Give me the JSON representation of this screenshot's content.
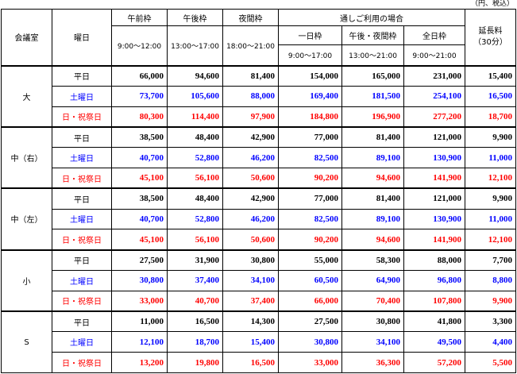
{
  "unit_note": "（円、税込）",
  "header": {
    "room": "会議室",
    "day": "曜日",
    "morning": "午前枠",
    "afternoon": "午後枠",
    "evening": "夜間枠",
    "combined": "通しご利用の場合",
    "oneday": "一日枠",
    "aft_eve": "午後・夜間枠",
    "fullday": "全日枠",
    "extension": "延長料\n（30分）",
    "t_morning": "9:00〜12:00",
    "t_afternoon": "13:00〜17:00",
    "t_evening": "18:00〜21:00",
    "t_oneday": "9:00〜17:00",
    "t_aft_eve": "13:00〜21:00",
    "t_fullday": "9:00〜21:00"
  },
  "colors": {
    "weekday": "#000000",
    "saturday": "#0000ff",
    "holiday": "#ff0000"
  },
  "rooms": [
    {
      "name": "大",
      "rows": [
        {
          "day": "平日",
          "kind": "weekday",
          "values": [
            "66,000",
            "94,600",
            "81,400",
            "154,000",
            "165,000",
            "231,000",
            "15,400"
          ]
        },
        {
          "day": "土曜日",
          "kind": "sat",
          "values": [
            "73,700",
            "105,600",
            "88,000",
            "169,400",
            "181,500",
            "254,100",
            "16,500"
          ]
        },
        {
          "day": "日・祝祭日",
          "kind": "hol",
          "values": [
            "80,300",
            "114,400",
            "97,900",
            "184,800",
            "196,900",
            "277,200",
            "18,700"
          ]
        }
      ]
    },
    {
      "name": "中（右）",
      "rows": [
        {
          "day": "平日",
          "kind": "weekday",
          "values": [
            "38,500",
            "48,400",
            "42,900",
            "77,000",
            "81,400",
            "121,000",
            "9,900"
          ]
        },
        {
          "day": "土曜日",
          "kind": "sat",
          "values": [
            "40,700",
            "52,800",
            "46,200",
            "82,500",
            "89,100",
            "130,900",
            "11,000"
          ]
        },
        {
          "day": "日・祝祭日",
          "kind": "hol",
          "values": [
            "45,100",
            "56,100",
            "50,600",
            "90,200",
            "94,600",
            "141,900",
            "12,100"
          ]
        }
      ]
    },
    {
      "name": "中（左）",
      "rows": [
        {
          "day": "平日",
          "kind": "weekday",
          "values": [
            "38,500",
            "48,400",
            "42,900",
            "77,000",
            "81,400",
            "121,000",
            "9,900"
          ]
        },
        {
          "day": "土曜日",
          "kind": "sat",
          "values": [
            "40,700",
            "52,800",
            "46,200",
            "82,500",
            "89,100",
            "130,900",
            "11,000"
          ]
        },
        {
          "day": "日・祝祭日",
          "kind": "hol",
          "values": [
            "45,100",
            "56,100",
            "50,600",
            "90,200",
            "94,600",
            "141,900",
            "12,100"
          ]
        }
      ]
    },
    {
      "name": "小",
      "rows": [
        {
          "day": "平日",
          "kind": "weekday",
          "values": [
            "27,500",
            "31,900",
            "30,800",
            "55,000",
            "58,300",
            "88,000",
            "7,700"
          ]
        },
        {
          "day": "土曜日",
          "kind": "sat",
          "values": [
            "30,800",
            "37,400",
            "34,100",
            "60,500",
            "64,900",
            "96,800",
            "8,800"
          ]
        },
        {
          "day": "日・祝祭日",
          "kind": "hol",
          "values": [
            "33,000",
            "40,700",
            "37,400",
            "66,000",
            "70,400",
            "107,800",
            "9,900"
          ]
        }
      ]
    },
    {
      "name": "S",
      "rows": [
        {
          "day": "平日",
          "kind": "weekday",
          "values": [
            "11,000",
            "16,500",
            "14,300",
            "27,500",
            "30,800",
            "41,800",
            "3,300"
          ]
        },
        {
          "day": "土曜日",
          "kind": "sat",
          "values": [
            "12,100",
            "18,700",
            "15,400",
            "30,800",
            "34,100",
            "49,500",
            "4,400"
          ]
        },
        {
          "day": "日・祝祭日",
          "kind": "hol",
          "values": [
            "13,200",
            "19,800",
            "16,500",
            "33,000",
            "36,300",
            "57,200",
            "5,500"
          ]
        }
      ]
    }
  ]
}
